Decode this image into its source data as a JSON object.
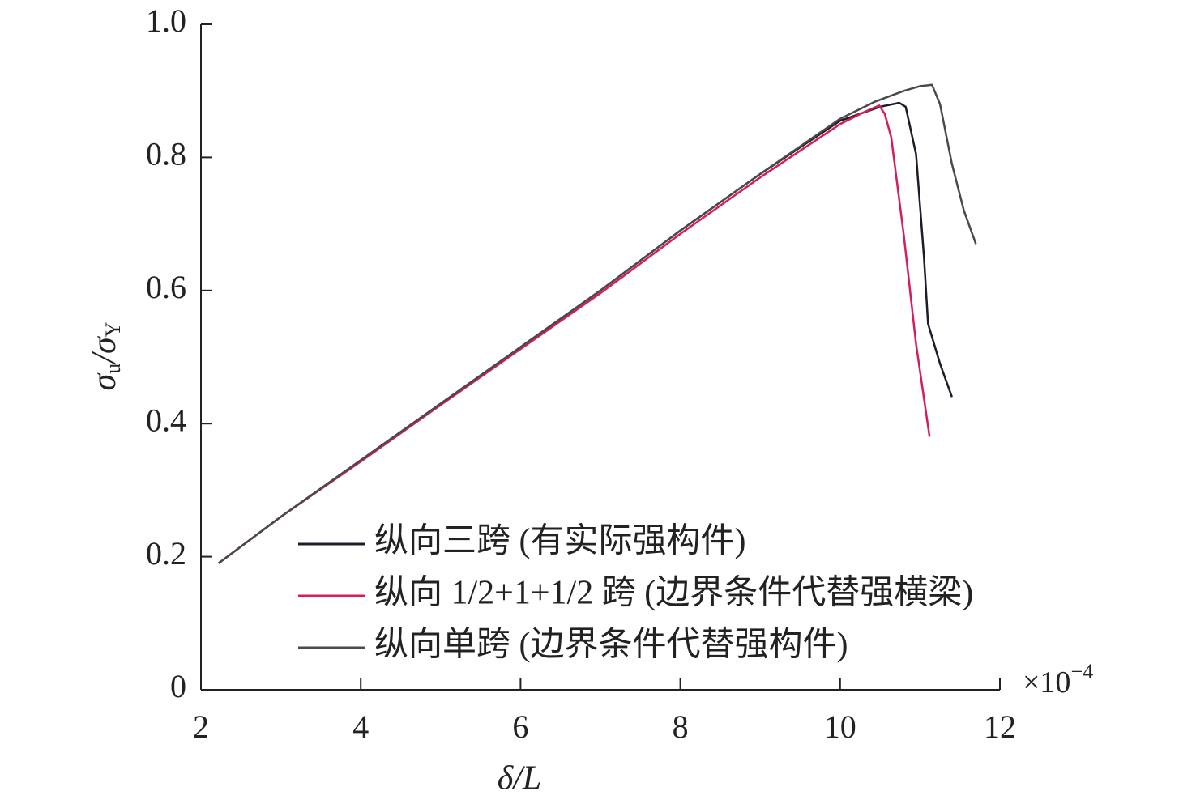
{
  "chart_data": {
    "type": "line",
    "x_label": "δ/L",
    "y_label": [
      "σ",
      "u",
      "/σ",
      "Y"
    ],
    "x_multiplier": "×10",
    "x_exponent": "−4",
    "xlim": [
      2,
      12
    ],
    "xticks": [
      2,
      4,
      6,
      8,
      10,
      12
    ],
    "ylim": [
      0,
      1.0
    ],
    "yticks": [
      0,
      0.2,
      0.4,
      0.6,
      0.8,
      {
        "value": 1.0,
        "label": "1.0"
      }
    ],
    "legend": "lower center",
    "grid": false,
    "series": [
      {
        "name": "纵向三跨 (有实际强构件)",
        "color": "#1c1c2a",
        "x": [
          2.22,
          3,
          4,
          5,
          6,
          7,
          8,
          9,
          10,
          10.5,
          10.74,
          10.82,
          10.95,
          11.05,
          11.1,
          11.25,
          11.4
        ],
        "values": [
          0.19,
          0.26,
          0.345,
          0.43,
          0.515,
          0.6,
          0.69,
          0.775,
          0.855,
          0.876,
          0.882,
          0.876,
          0.805,
          0.65,
          0.55,
          0.49,
          0.44
        ]
      },
      {
        "name": "纵向 1/2+1+1/2 跨 (边界条件代替强横梁)",
        "color": "#d81b5a",
        "x": [
          2.22,
          3,
          4,
          5,
          6,
          7,
          8,
          9,
          10,
          10.3,
          10.49,
          10.56,
          10.64,
          10.8,
          10.95,
          11.12
        ],
        "values": [
          0.19,
          0.26,
          0.343,
          0.428,
          0.512,
          0.596,
          0.685,
          0.77,
          0.85,
          0.868,
          0.878,
          0.865,
          0.83,
          0.68,
          0.52,
          0.38
        ]
      },
      {
        "name": "纵向单跨 (边界条件代替强构件)",
        "color": "#4a4a4a",
        "x": [
          2.22,
          3,
          4,
          5,
          6,
          7,
          8,
          9,
          10,
          10.44,
          10.8,
          11.0,
          11.15,
          11.25,
          11.4,
          11.55,
          11.7
        ],
        "values": [
          0.19,
          0.26,
          0.345,
          0.43,
          0.515,
          0.6,
          0.69,
          0.775,
          0.858,
          0.884,
          0.9,
          0.907,
          0.909,
          0.88,
          0.79,
          0.72,
          0.67
        ]
      }
    ]
  }
}
